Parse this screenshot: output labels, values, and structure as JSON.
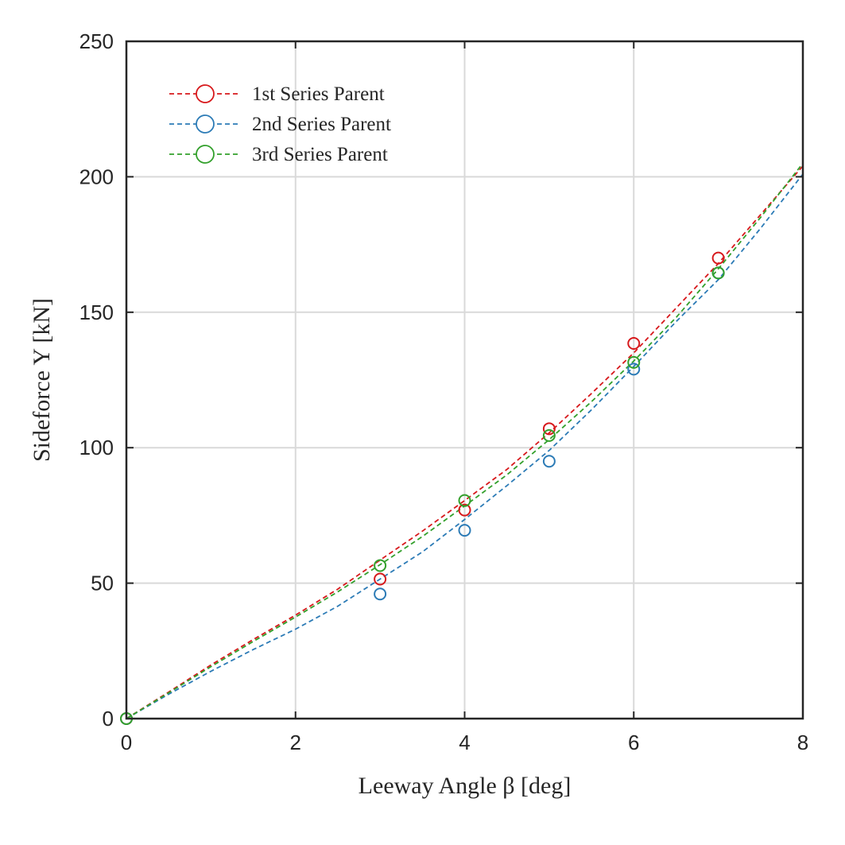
{
  "chart_data": {
    "type": "scatter",
    "title": "",
    "xlabel": "Leeway Angle β [deg]",
    "ylabel": "Sideforce Y [kN]",
    "xlim": [
      0,
      8
    ],
    "ylim": [
      0,
      250
    ],
    "x_ticks": [
      0,
      2,
      4,
      6,
      8
    ],
    "y_ticks": [
      0,
      50,
      100,
      150,
      200,
      250
    ],
    "x_tick_labels": [
      "0",
      "2",
      "4",
      "6",
      "8"
    ],
    "y_tick_labels": [
      "0",
      "50",
      "100",
      "150",
      "200",
      "250"
    ],
    "grid": true,
    "legend_position": "top-left",
    "series": [
      {
        "name": "1st Series Parent",
        "color": "#d7191c",
        "points": {
          "x": [
            0,
            3,
            4,
            5,
            6,
            7
          ],
          "y": [
            0,
            51.5,
            77,
            107,
            138.5,
            170
          ]
        },
        "fit": {
          "x": [
            0,
            0.5,
            1,
            1.5,
            2,
            2.5,
            3,
            3.5,
            4,
            4.5,
            5,
            5.5,
            6,
            6.5,
            7,
            7.5,
            8
          ],
          "y": [
            0,
            9.8,
            19.8,
            29.2,
            38.2,
            47.8,
            58.5,
            69.2,
            80.5,
            92,
            105.5,
            120,
            135,
            151.5,
            168,
            186,
            204
          ]
        }
      },
      {
        "name": "2nd Series Parent",
        "color": "#2c7bb6",
        "points": {
          "x": [
            0,
            3,
            4,
            5,
            6,
            7
          ],
          "y": [
            0,
            46,
            69.5,
            95,
            129,
            164.5
          ]
        },
        "fit": {
          "x": [
            0,
            0.5,
            1,
            1.5,
            2,
            2.5,
            3,
            3.5,
            4,
            4.5,
            5,
            5.5,
            6,
            6.5,
            7,
            7.5,
            8
          ],
          "y": [
            0,
            9,
            17.5,
            25.5,
            33,
            41.5,
            51.5,
            61.5,
            73.5,
            86,
            99,
            114,
            130,
            146.5,
            162,
            181,
            201
          ]
        }
      },
      {
        "name": "3rd Series Parent",
        "color": "#33a02c",
        "points": {
          "x": [
            0,
            3,
            4,
            5,
            6,
            7
          ],
          "y": [
            0,
            56.5,
            80.5,
            104.5,
            131.5,
            164.5
          ]
        },
        "fit": {
          "x": [
            0,
            0.5,
            1,
            1.5,
            2,
            2.5,
            3,
            3.5,
            4,
            4.5,
            5,
            5.5,
            6,
            6.5,
            7,
            7.5,
            8
          ],
          "y": [
            0,
            9.5,
            19.2,
            28.5,
            37.5,
            46.8,
            56.8,
            67.2,
            78.5,
            90,
            103,
            117,
            132,
            148,
            166,
            185,
            205
          ]
        }
      }
    ]
  }
}
